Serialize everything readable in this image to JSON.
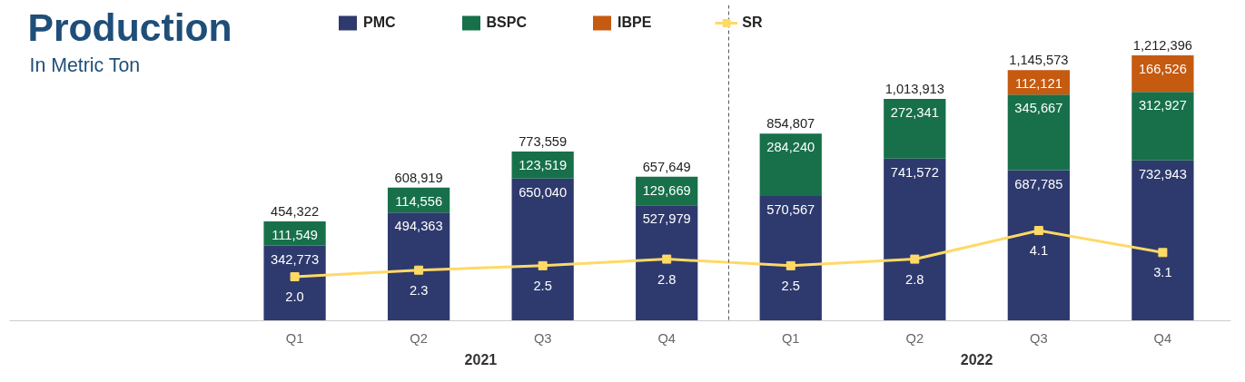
{
  "chart_data": {
    "type": "bar",
    "title": "Production",
    "subtitle": "In Metric Ton",
    "stacked": true,
    "legend": "top",
    "grid": false,
    "categories": [
      "Q1",
      "Q2",
      "Q3",
      "Q4",
      "Q1",
      "Q2",
      "Q3",
      "Q4"
    ],
    "annotations": [
      "2021",
      "2022"
    ],
    "tick_labels": "x",
    "series": [
      {
        "name": "PMC",
        "color": "#2e3a6e",
        "values": [
          342773,
          494363,
          650040,
          527979,
          570567,
          741572,
          687785,
          732943
        ],
        "value_labels": [
          "342,773",
          "494,363",
          "650,040",
          "527,979",
          "570,567",
          "741,572",
          "687,785",
          "732,943"
        ]
      },
      {
        "name": "BSPC",
        "color": "#17704a",
        "values": [
          111549,
          114556,
          123519,
          129669,
          284240,
          272341,
          345667,
          312927
        ],
        "value_labels": [
          "111,549",
          "114,556",
          "123,519",
          "129,669",
          "284,240",
          "272,341",
          "345,667",
          "312,927"
        ]
      },
      {
        "name": "IBPE",
        "color": "#c55a11",
        "values": [
          null,
          null,
          null,
          null,
          null,
          null,
          112121,
          166526
        ],
        "value_labels": [
          null,
          null,
          null,
          null,
          null,
          null,
          "112,121",
          "166,526"
        ]
      },
      {
        "name": "SR",
        "type": "line",
        "axis": "y2",
        "color": "#ffd966",
        "marker": "square",
        "values": [
          2.0,
          2.3,
          2.5,
          2.8,
          2.5,
          2.8,
          4.1,
          3.1
        ],
        "value_labels": [
          "2.0",
          "2.3",
          "2.5",
          "2.8",
          "2.5",
          "2.8",
          "4.1",
          "3.1"
        ]
      }
    ],
    "totals": [
      "454,322",
      "608,919",
      "773,559",
      "657,649",
      "854,807",
      "1,013,913",
      "1,145,573",
      "1,212,396"
    ]
  }
}
